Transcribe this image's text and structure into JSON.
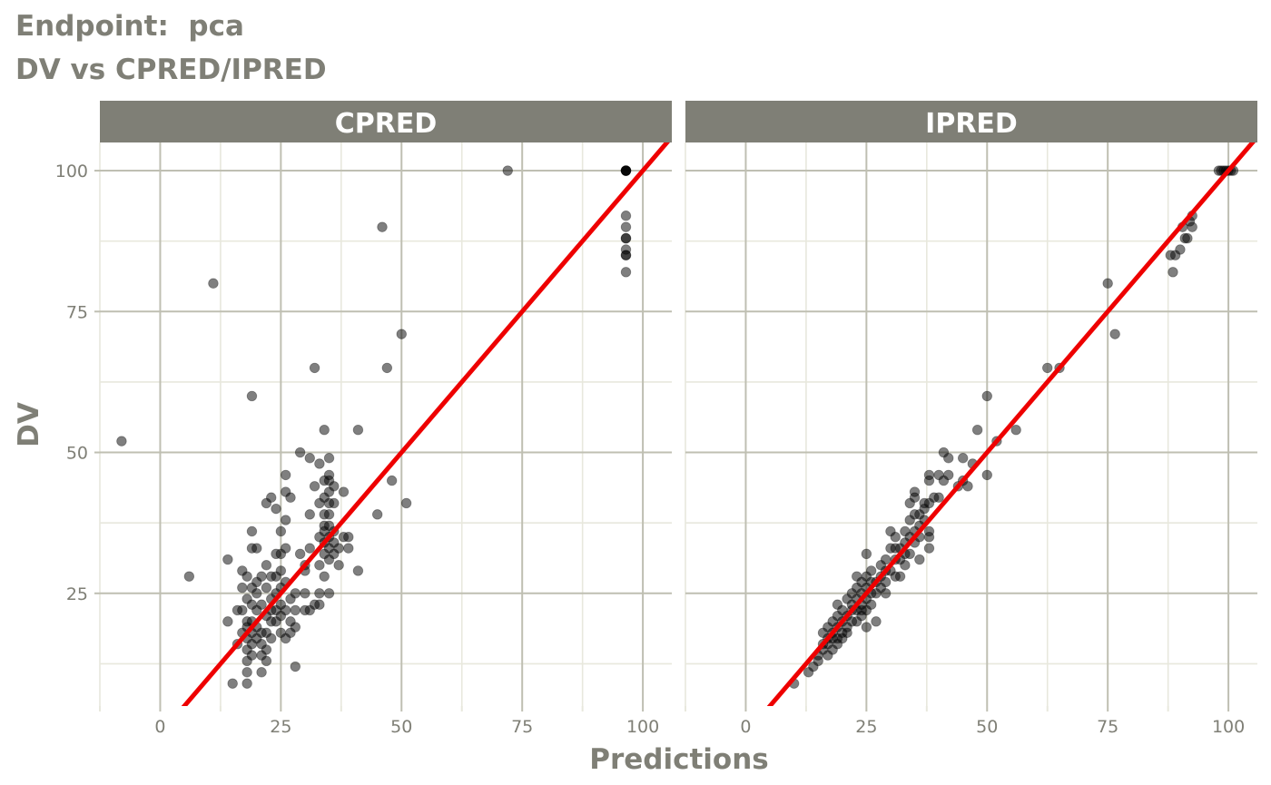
{
  "header": {
    "line1": "Endpoint:  pca",
    "line2": "DV vs CPRED/IPRED"
  },
  "colors": {
    "strip_bg": "#7f7f76",
    "strip_text": "#ffffff",
    "grid_major": "#bfbfb2",
    "grid_minor": "#e8e8dd",
    "axis_text": "#7f7f76",
    "points": "#000000",
    "identity_line": "#ee0000"
  },
  "chart_data": {
    "type": "scatter",
    "title": "DV vs CPRED/IPRED",
    "xlabel": "Predictions",
    "ylabel": "DV",
    "xlim": [
      -12.5,
      106
    ],
    "ylim": [
      5,
      105
    ],
    "x_ticks": [
      "0",
      "25",
      "50",
      "75",
      "100"
    ],
    "y_ticks": [
      "25",
      "50",
      "75",
      "100"
    ],
    "x_tick_values": [
      0,
      25,
      50,
      75,
      100
    ],
    "y_tick_values": [
      25,
      50,
      75,
      100
    ],
    "grid": true,
    "reference_line": "identity (y = x)",
    "point_alpha": 0.5,
    "panels": [
      {
        "strip": "CPRED",
        "points": [
          [
            -8,
            52
          ],
          [
            6,
            28
          ],
          [
            11,
            80
          ],
          [
            19,
            60
          ],
          [
            14,
            31
          ],
          [
            14,
            20
          ],
          [
            15,
            9
          ],
          [
            18,
            9
          ],
          [
            16,
            22
          ],
          [
            17,
            22
          ],
          [
            16,
            16
          ],
          [
            17,
            18
          ],
          [
            17,
            29
          ],
          [
            17,
            26
          ],
          [
            18,
            28
          ],
          [
            18,
            24
          ],
          [
            18,
            20
          ],
          [
            18,
            19
          ],
          [
            18,
            17
          ],
          [
            18,
            15
          ],
          [
            18,
            13
          ],
          [
            18,
            11
          ],
          [
            19,
            20
          ],
          [
            19,
            18
          ],
          [
            19,
            16
          ],
          [
            19,
            36
          ],
          [
            19,
            33
          ],
          [
            19,
            26
          ],
          [
            19,
            23
          ],
          [
            19,
            14
          ],
          [
            20,
            33
          ],
          [
            20,
            27
          ],
          [
            20,
            22
          ],
          [
            20,
            19
          ],
          [
            20,
            17
          ],
          [
            20,
            25
          ],
          [
            21,
            28
          ],
          [
            21,
            23
          ],
          [
            21,
            18
          ],
          [
            21,
            16
          ],
          [
            21,
            14
          ],
          [
            21,
            11
          ],
          [
            22,
            30
          ],
          [
            22,
            26
          ],
          [
            22,
            21
          ],
          [
            22,
            18
          ],
          [
            22,
            15
          ],
          [
            22,
            13
          ],
          [
            22,
            41
          ],
          [
            23,
            42
          ],
          [
            23,
            28
          ],
          [
            23,
            24
          ],
          [
            23,
            22
          ],
          [
            23,
            20
          ],
          [
            23,
            17
          ],
          [
            24,
            32
          ],
          [
            24,
            28
          ],
          [
            24,
            25
          ],
          [
            24,
            22
          ],
          [
            24,
            20
          ],
          [
            24,
            40
          ],
          [
            25,
            36
          ],
          [
            25,
            32
          ],
          [
            25,
            29
          ],
          [
            25,
            26
          ],
          [
            25,
            23
          ],
          [
            25,
            21
          ],
          [
            25,
            18
          ],
          [
            26,
            46
          ],
          [
            26,
            43
          ],
          [
            26,
            38
          ],
          [
            26,
            33
          ],
          [
            26,
            27
          ],
          [
            26,
            22
          ],
          [
            26,
            17
          ],
          [
            27,
            42
          ],
          [
            27,
            24
          ],
          [
            27,
            20
          ],
          [
            27,
            18
          ],
          [
            28,
            25
          ],
          [
            28,
            22
          ],
          [
            28,
            19
          ],
          [
            28,
            12
          ],
          [
            29,
            50
          ],
          [
            29,
            32
          ],
          [
            30,
            30
          ],
          [
            30,
            29
          ],
          [
            30,
            25
          ],
          [
            30,
            22
          ],
          [
            31,
            49
          ],
          [
            31,
            39
          ],
          [
            31,
            33
          ],
          [
            31,
            22
          ],
          [
            32,
            23
          ],
          [
            32,
            65
          ],
          [
            32,
            44
          ],
          [
            33,
            48
          ],
          [
            33,
            41
          ],
          [
            33,
            35
          ],
          [
            33,
            30
          ],
          [
            33,
            25
          ],
          [
            33,
            23
          ],
          [
            34,
            54
          ],
          [
            34,
            45
          ],
          [
            34,
            42
          ],
          [
            34,
            39
          ],
          [
            34,
            37
          ],
          [
            34,
            36
          ],
          [
            34,
            34
          ],
          [
            34,
            32
          ],
          [
            34,
            28
          ],
          [
            35,
            49
          ],
          [
            35,
            46
          ],
          [
            35,
            45
          ],
          [
            35,
            43
          ],
          [
            35,
            41
          ],
          [
            35,
            39
          ],
          [
            35,
            37
          ],
          [
            35,
            35
          ],
          [
            35,
            33
          ],
          [
            35,
            31
          ],
          [
            35,
            25
          ],
          [
            36,
            44
          ],
          [
            36,
            41
          ],
          [
            36,
            36
          ],
          [
            36,
            34
          ],
          [
            36,
            32
          ],
          [
            37,
            33
          ],
          [
            37,
            30
          ],
          [
            38,
            43
          ],
          [
            38,
            35
          ],
          [
            39,
            35
          ],
          [
            39,
            33
          ],
          [
            41,
            54
          ],
          [
            41,
            29
          ],
          [
            45,
            39
          ],
          [
            46,
            90
          ],
          [
            47,
            65
          ],
          [
            48,
            45
          ],
          [
            50,
            71
          ],
          [
            51,
            41
          ],
          [
            72,
            100
          ],
          [
            96.5,
            100
          ],
          [
            96.5,
            100
          ],
          [
            96.5,
            100
          ],
          [
            96.5,
            100
          ],
          [
            96.5,
            100
          ],
          [
            96.5,
            92
          ],
          [
            96.5,
            90
          ],
          [
            96.5,
            88
          ],
          [
            96.5,
            88
          ],
          [
            96.5,
            86
          ],
          [
            96.5,
            85
          ],
          [
            96.5,
            85
          ],
          [
            96.5,
            82
          ]
        ]
      },
      {
        "strip": "IPRED",
        "points": [
          [
            10,
            9
          ],
          [
            13,
            11
          ],
          [
            14,
            12
          ],
          [
            15,
            13
          ],
          [
            15,
            14
          ],
          [
            16,
            15
          ],
          [
            16,
            16
          ],
          [
            16,
            18
          ],
          [
            17,
            14
          ],
          [
            17,
            16
          ],
          [
            17,
            17
          ],
          [
            17,
            19
          ],
          [
            18,
            15
          ],
          [
            18,
            17
          ],
          [
            18,
            18
          ],
          [
            18,
            20
          ],
          [
            19,
            16
          ],
          [
            19,
            17
          ],
          [
            19,
            19
          ],
          [
            19,
            21
          ],
          [
            19,
            23
          ],
          [
            20,
            17
          ],
          [
            20,
            18
          ],
          [
            20,
            20
          ],
          [
            20,
            22
          ],
          [
            21,
            18
          ],
          [
            21,
            19
          ],
          [
            21,
            21
          ],
          [
            21,
            24
          ],
          [
            22,
            20
          ],
          [
            22,
            22
          ],
          [
            22,
            23
          ],
          [
            22,
            25
          ],
          [
            23,
            20
          ],
          [
            23,
            22
          ],
          [
            23,
            24
          ],
          [
            23,
            26
          ],
          [
            23,
            28
          ],
          [
            24,
            21
          ],
          [
            24,
            22
          ],
          [
            24,
            23
          ],
          [
            24,
            25
          ],
          [
            24,
            27
          ],
          [
            25,
            19
          ],
          [
            25,
            22
          ],
          [
            25,
            24
          ],
          [
            25,
            26
          ],
          [
            25,
            28
          ],
          [
            25,
            32
          ],
          [
            26,
            23
          ],
          [
            26,
            25
          ],
          [
            26,
            27
          ],
          [
            26,
            29
          ],
          [
            27,
            25
          ],
          [
            27,
            27
          ],
          [
            27,
            20
          ],
          [
            28,
            26
          ],
          [
            28,
            28
          ],
          [
            28,
            30
          ],
          [
            29,
            25
          ],
          [
            29,
            27
          ],
          [
            29,
            29
          ],
          [
            29,
            31
          ],
          [
            30,
            29
          ],
          [
            30,
            36
          ],
          [
            30,
            33
          ],
          [
            31,
            28
          ],
          [
            31,
            31
          ],
          [
            31,
            33
          ],
          [
            31,
            35
          ],
          [
            32,
            28
          ],
          [
            32,
            31
          ],
          [
            32,
            33
          ],
          [
            33,
            30
          ],
          [
            33,
            32
          ],
          [
            33,
            34
          ],
          [
            33,
            36
          ],
          [
            34,
            32
          ],
          [
            34,
            35
          ],
          [
            34,
            38
          ],
          [
            34,
            41
          ],
          [
            35,
            34
          ],
          [
            35,
            36
          ],
          [
            35,
            39
          ],
          [
            35,
            42
          ],
          [
            35,
            43
          ],
          [
            36,
            31
          ],
          [
            36,
            35
          ],
          [
            36,
            37
          ],
          [
            36,
            39
          ],
          [
            37,
            38
          ],
          [
            37,
            40
          ],
          [
            37,
            41
          ],
          [
            38,
            33
          ],
          [
            38,
            35
          ],
          [
            38,
            36
          ],
          [
            38,
            41
          ],
          [
            38,
            45
          ],
          [
            38,
            46
          ],
          [
            39,
            42
          ],
          [
            40,
            42
          ],
          [
            40,
            46
          ],
          [
            41,
            50
          ],
          [
            41,
            45
          ],
          [
            42,
            46
          ],
          [
            42,
            49
          ],
          [
            44,
            44
          ],
          [
            45,
            45
          ],
          [
            45,
            49
          ],
          [
            46,
            44
          ],
          [
            47,
            48
          ],
          [
            48,
            54
          ],
          [
            50,
            46
          ],
          [
            50,
            60
          ],
          [
            52,
            52
          ],
          [
            56,
            54
          ],
          [
            62.5,
            65
          ],
          [
            65,
            65
          ],
          [
            75,
            80
          ],
          [
            76.5,
            71
          ],
          [
            88,
            85
          ],
          [
            88.5,
            82
          ],
          [
            89,
            85
          ],
          [
            90,
            86
          ],
          [
            90.5,
            90
          ],
          [
            91,
            88
          ],
          [
            91.5,
            88
          ],
          [
            92,
            91
          ],
          [
            92.5,
            90
          ],
          [
            92.5,
            92
          ],
          [
            98,
            100
          ],
          [
            98.5,
            100
          ],
          [
            99,
            100
          ],
          [
            99.5,
            100
          ],
          [
            100,
            100
          ],
          [
            100.5,
            100
          ],
          [
            101,
            100
          ]
        ]
      }
    ]
  }
}
